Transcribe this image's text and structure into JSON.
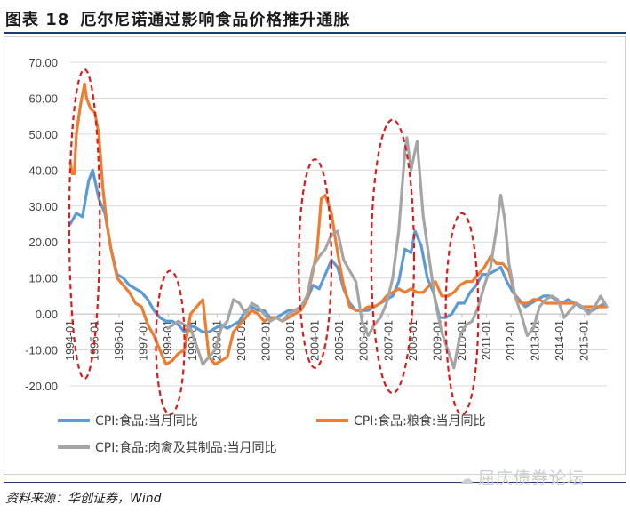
{
  "figure": {
    "number": "图表 18",
    "title": "厄尔尼诺通过影响食品价格推升通胀",
    "source": "资料来源：华创证券，Wind",
    "watermark": "屈庆债券论坛",
    "watermark_icon": "wechat-icon"
  },
  "chart_data": {
    "type": "line",
    "title": "",
    "xlabel": "",
    "ylabel": "",
    "ylim": [
      -20,
      70
    ],
    "xlim": [
      "1994-01",
      "2015-12"
    ],
    "yticks": [
      "70.00",
      "60.00",
      "50.00",
      "40.00",
      "30.00",
      "20.00",
      "10.00",
      "0.00",
      "-10.00",
      "-20.00"
    ],
    "xticks": [
      "1994-01",
      "1995-01",
      "1996-01",
      "1997-01",
      "1998-01",
      "1999-01",
      "2000-01",
      "2001-01",
      "2002-01",
      "2003-01",
      "2004-01",
      "2005-01",
      "2006-01",
      "2007-01",
      "2008-01",
      "2009-01",
      "2010-01",
      "2011-01",
      "2012-01",
      "2013-01",
      "2014-01",
      "2015-01"
    ],
    "grid": "horizontal",
    "legend_position": "bottom",
    "series": [
      {
        "name": "CPI:食品:当月同比",
        "color": "#5b9bd5",
        "points": [
          [
            "1994-01",
            25
          ],
          [
            "1994-04",
            28
          ],
          [
            "1994-07",
            27
          ],
          [
            "1994-10",
            37
          ],
          [
            "1994-12",
            40
          ],
          [
            "1995-03",
            32
          ],
          [
            "1995-06",
            28
          ],
          [
            "1995-09",
            18
          ],
          [
            "1995-12",
            11
          ],
          [
            "1996-03",
            10
          ],
          [
            "1996-06",
            8
          ],
          [
            "1996-09",
            7
          ],
          [
            "1996-12",
            6
          ],
          [
            "1997-03",
            4
          ],
          [
            "1997-06",
            1
          ],
          [
            "1997-09",
            -1
          ],
          [
            "1997-12",
            -2
          ],
          [
            "1998-03",
            -2
          ],
          [
            "1998-06",
            -3
          ],
          [
            "1998-09",
            -5
          ],
          [
            "1998-12",
            -3
          ],
          [
            "1999-03",
            -4
          ],
          [
            "1999-06",
            -5
          ],
          [
            "1999-09",
            -5
          ],
          [
            "1999-12",
            -4
          ],
          [
            "2000-03",
            -3
          ],
          [
            "2000-06",
            -4
          ],
          [
            "2000-09",
            -3
          ],
          [
            "2000-12",
            -2
          ],
          [
            "2001-03",
            1
          ],
          [
            "2001-06",
            2
          ],
          [
            "2001-09",
            1
          ],
          [
            "2001-12",
            1
          ],
          [
            "2002-03",
            -1
          ],
          [
            "2002-06",
            -1
          ],
          [
            "2002-09",
            0
          ],
          [
            "2002-12",
            1
          ],
          [
            "2003-03",
            1
          ],
          [
            "2003-06",
            2
          ],
          [
            "2003-09",
            4
          ],
          [
            "2003-12",
            8
          ],
          [
            "2004-03",
            7
          ],
          [
            "2004-06",
            11
          ],
          [
            "2004-09",
            15
          ],
          [
            "2004-12",
            13
          ],
          [
            "2005-03",
            7
          ],
          [
            "2005-06",
            3
          ],
          [
            "2005-09",
            1
          ],
          [
            "2005-12",
            1
          ],
          [
            "2006-03",
            1
          ],
          [
            "2006-06",
            2
          ],
          [
            "2006-09",
            3
          ],
          [
            "2006-12",
            4
          ],
          [
            "2007-03",
            5
          ],
          [
            "2007-06",
            9
          ],
          [
            "2007-09",
            18
          ],
          [
            "2007-12",
            17
          ],
          [
            "2008-02",
            23
          ],
          [
            "2008-05",
            19
          ],
          [
            "2008-08",
            10
          ],
          [
            "2008-11",
            6
          ],
          [
            "2009-02",
            -1
          ],
          [
            "2009-05",
            -1
          ],
          [
            "2009-08",
            0
          ],
          [
            "2009-11",
            3
          ],
          [
            "2010-02",
            3
          ],
          [
            "2010-05",
            6
          ],
          [
            "2010-08",
            8
          ],
          [
            "2010-11",
            11
          ],
          [
            "2011-02",
            11
          ],
          [
            "2011-05",
            12
          ],
          [
            "2011-08",
            13
          ],
          [
            "2011-11",
            9
          ],
          [
            "2012-02",
            6
          ],
          [
            "2012-05",
            4
          ],
          [
            "2012-08",
            2
          ],
          [
            "2012-11",
            3
          ],
          [
            "2013-02",
            4
          ],
          [
            "2013-05",
            5
          ],
          [
            "2013-08",
            5
          ],
          [
            "2013-11",
            4
          ],
          [
            "2014-02",
            3
          ],
          [
            "2014-05",
            4
          ],
          [
            "2014-08",
            3
          ],
          [
            "2014-11",
            2
          ],
          [
            "2015-02",
            1
          ],
          [
            "2015-05",
            1
          ],
          [
            "2015-08",
            2
          ],
          [
            "2015-11",
            3
          ]
        ]
      },
      {
        "name": "CPI:食品:粮食:当月同比",
        "color": "#ed7d31",
        "points": [
          [
            "1994-01",
            42
          ],
          [
            "1994-02",
            39
          ],
          [
            "1994-03",
            39
          ],
          [
            "1994-04",
            50
          ],
          [
            "1994-06",
            58
          ],
          [
            "1994-08",
            64
          ],
          [
            "1994-09",
            60
          ],
          [
            "1994-11",
            57
          ],
          [
            "1995-01",
            56
          ],
          [
            "1995-03",
            50
          ],
          [
            "1995-05",
            35
          ],
          [
            "1995-07",
            25
          ],
          [
            "1995-09",
            18
          ],
          [
            "1995-12",
            10
          ],
          [
            "1996-03",
            8
          ],
          [
            "1996-06",
            6
          ],
          [
            "1996-09",
            3
          ],
          [
            "1996-12",
            2
          ],
          [
            "1997-03",
            -3
          ],
          [
            "1997-06",
            -6
          ],
          [
            "1997-09",
            -10
          ],
          [
            "1997-12",
            -14
          ],
          [
            "1998-03",
            -13
          ],
          [
            "1998-06",
            -11
          ],
          [
            "1998-09",
            -10
          ],
          [
            "1998-12",
            0
          ],
          [
            "1999-03",
            2
          ],
          [
            "1999-06",
            4
          ],
          [
            "1999-09",
            -12
          ],
          [
            "1999-12",
            -14
          ],
          [
            "2000-03",
            -13
          ],
          [
            "2000-06",
            -12
          ],
          [
            "2000-09",
            -5
          ],
          [
            "2000-12",
            -3
          ],
          [
            "2001-03",
            -1
          ],
          [
            "2001-06",
            1
          ],
          [
            "2001-09",
            0
          ],
          [
            "2001-12",
            -2
          ],
          [
            "2002-03",
            -1
          ],
          [
            "2002-06",
            -1
          ],
          [
            "2002-09",
            -2
          ],
          [
            "2002-12",
            -1
          ],
          [
            "2003-03",
            0
          ],
          [
            "2003-06",
            1
          ],
          [
            "2003-09",
            4
          ],
          [
            "2003-12",
            12
          ],
          [
            "2004-02",
            18
          ],
          [
            "2004-04",
            32
          ],
          [
            "2004-06",
            33
          ],
          [
            "2004-09",
            28
          ],
          [
            "2004-12",
            17
          ],
          [
            "2005-03",
            8
          ],
          [
            "2005-06",
            2
          ],
          [
            "2005-09",
            1
          ],
          [
            "2005-12",
            1
          ],
          [
            "2006-03",
            2
          ],
          [
            "2006-06",
            2
          ],
          [
            "2006-09",
            3
          ],
          [
            "2006-12",
            5
          ],
          [
            "2007-03",
            6
          ],
          [
            "2007-06",
            7
          ],
          [
            "2007-09",
            6
          ],
          [
            "2007-12",
            7
          ],
          [
            "2008-03",
            6
          ],
          [
            "2008-06",
            6
          ],
          [
            "2008-09",
            8
          ],
          [
            "2008-12",
            9
          ],
          [
            "2009-03",
            5
          ],
          [
            "2009-06",
            5
          ],
          [
            "2009-09",
            6
          ],
          [
            "2009-12",
            8
          ],
          [
            "2010-03",
            9
          ],
          [
            "2010-06",
            9
          ],
          [
            "2010-09",
            11
          ],
          [
            "2010-12",
            13
          ],
          [
            "2011-03",
            16
          ],
          [
            "2011-06",
            14
          ],
          [
            "2011-09",
            14
          ],
          [
            "2011-12",
            12
          ],
          [
            "2012-03",
            5
          ],
          [
            "2012-06",
            3
          ],
          [
            "2012-09",
            3
          ],
          [
            "2012-12",
            4
          ],
          [
            "2013-03",
            4
          ],
          [
            "2013-06",
            3
          ],
          [
            "2013-09",
            3
          ],
          [
            "2013-12",
            3
          ],
          [
            "2014-03",
            3
          ],
          [
            "2014-06",
            3
          ],
          [
            "2014-09",
            3
          ],
          [
            "2014-12",
            2
          ],
          [
            "2015-03",
            2
          ],
          [
            "2015-06",
            2
          ],
          [
            "2015-09",
            2
          ],
          [
            "2015-12",
            2
          ]
        ]
      },
      {
        "name": "CPI:食品:肉禽及其制品:当月同比",
        "color": "#a5a5a5",
        "points": [
          [
            "1998-01",
            -4
          ],
          [
            "1998-06",
            -2
          ],
          [
            "1998-12",
            -4
          ],
          [
            "1999-03",
            -9
          ],
          [
            "1999-06",
            -14
          ],
          [
            "1999-09",
            -12
          ],
          [
            "1999-12",
            -10
          ],
          [
            "2000-03",
            -4
          ],
          [
            "2000-06",
            -2
          ],
          [
            "2000-09",
            4
          ],
          [
            "2000-12",
            3
          ],
          [
            "2001-03",
            0
          ],
          [
            "2001-06",
            3
          ],
          [
            "2001-09",
            2
          ],
          [
            "2001-12",
            0
          ],
          [
            "2002-03",
            -2
          ],
          [
            "2002-06",
            -1
          ],
          [
            "2002-09",
            -2
          ],
          [
            "2002-12",
            0
          ],
          [
            "2003-03",
            1
          ],
          [
            "2003-06",
            2
          ],
          [
            "2003-09",
            5
          ],
          [
            "2003-12",
            13
          ],
          [
            "2004-03",
            16
          ],
          [
            "2004-06",
            18
          ],
          [
            "2004-09",
            22
          ],
          [
            "2004-12",
            23
          ],
          [
            "2005-03",
            15
          ],
          [
            "2005-06",
            12
          ],
          [
            "2005-09",
            9
          ],
          [
            "2005-12",
            -2
          ],
          [
            "2006-03",
            -6
          ],
          [
            "2006-06",
            -3
          ],
          [
            "2006-09",
            -1
          ],
          [
            "2006-12",
            3
          ],
          [
            "2007-03",
            10
          ],
          [
            "2007-06",
            23
          ],
          [
            "2007-09",
            45
          ],
          [
            "2007-10",
            49
          ],
          [
            "2007-12",
            40
          ],
          [
            "2008-03",
            48
          ],
          [
            "2008-06",
            27
          ],
          [
            "2008-09",
            15
          ],
          [
            "2008-12",
            3
          ],
          [
            "2009-03",
            -5
          ],
          [
            "2009-06",
            -10
          ],
          [
            "2009-09",
            -15
          ],
          [
            "2009-12",
            -6
          ],
          [
            "2010-03",
            -3
          ],
          [
            "2010-06",
            -2
          ],
          [
            "2010-09",
            2
          ],
          [
            "2010-12",
            8
          ],
          [
            "2011-03",
            13
          ],
          [
            "2011-06",
            24
          ],
          [
            "2011-08",
            33
          ],
          [
            "2011-10",
            26
          ],
          [
            "2011-12",
            14
          ],
          [
            "2012-03",
            5
          ],
          [
            "2012-06",
            0
          ],
          [
            "2012-09",
            -6
          ],
          [
            "2012-12",
            -4
          ],
          [
            "2013-03",
            2
          ],
          [
            "2013-06",
            4
          ],
          [
            "2013-09",
            5
          ],
          [
            "2013-12",
            4
          ],
          [
            "2014-03",
            -1
          ],
          [
            "2014-06",
            1
          ],
          [
            "2014-09",
            3
          ],
          [
            "2014-12",
            2
          ],
          [
            "2015-03",
            0
          ],
          [
            "2015-06",
            2
          ],
          [
            "2015-09",
            5
          ],
          [
            "2015-12",
            2
          ]
        ]
      }
    ],
    "annotations": [
      {
        "type": "ellipse",
        "color": "#d91c1c",
        "x_center": "1994-08",
        "y_center": 25,
        "half_width_months": 7.5,
        "half_height": 43
      },
      {
        "type": "ellipse",
        "color": "#d91c1c",
        "x_center": "1998-02",
        "y_center": -8,
        "half_width_months": 7,
        "half_height": 20
      },
      {
        "type": "ellipse",
        "color": "#d91c1c",
        "x_center": "2004-01",
        "y_center": 14,
        "half_width_months": 8,
        "half_height": 29
      },
      {
        "type": "ellipse",
        "color": "#d91c1c",
        "x_center": "2007-03",
        "y_center": 16,
        "half_width_months": 10.5,
        "half_height": 38
      },
      {
        "type": "ellipse",
        "color": "#d91c1c",
        "x_center": "2010-01",
        "y_center": 0,
        "half_width_months": 8,
        "half_height": 28
      }
    ]
  }
}
